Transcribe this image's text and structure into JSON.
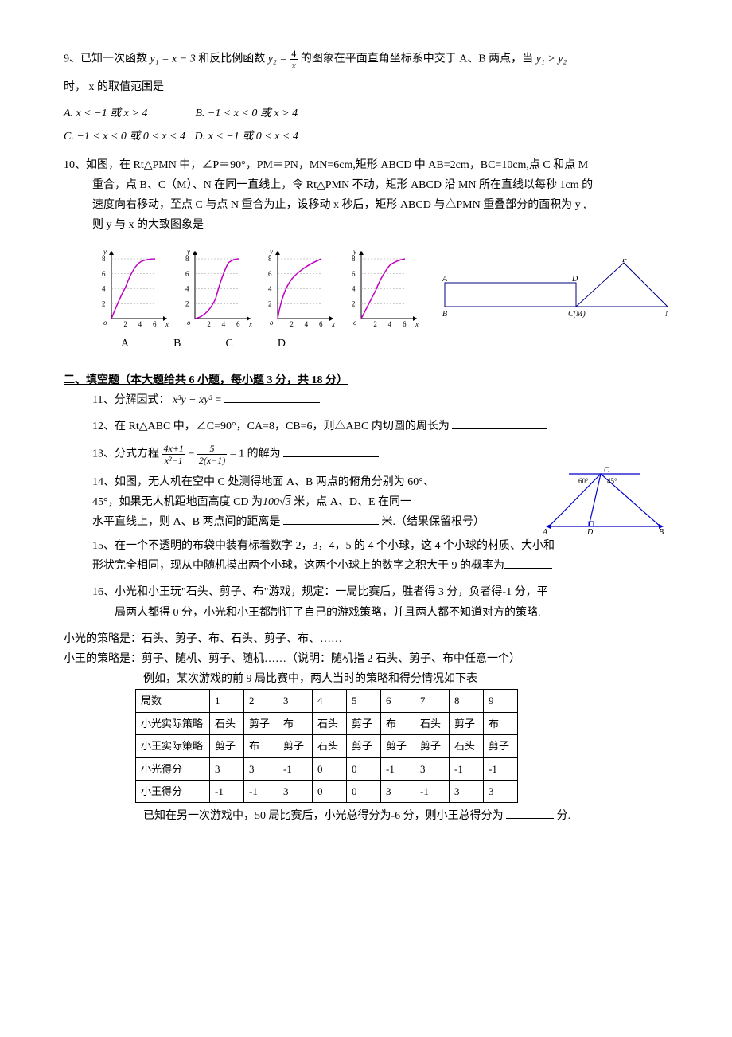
{
  "q9": {
    "stem_a": "9、已知一次函数 ",
    "y1_expr": "y₁ = x − 3",
    "mid": " 和反比例函数 ",
    "y2_left": "y₂ = ",
    "y2_frac_num": "4",
    "y2_frac_den": "x",
    "stem_b": " 的图象在平面直角坐标系中交于 A、B 两点，当 ",
    "cond": "y₁ > y₂",
    "line2": "时， x 的取值范围是",
    "optA": "A.  x < −1 或 x > 4",
    "optB": "B.  −1 < x < 0 或 x > 4",
    "optC": "C.  −1 < x < 0 或 0 < x < 4",
    "optD": "D.  x < −1 或 0 < x < 4"
  },
  "q10": {
    "stem1": "10、如图，在 Rt△PMN 中，∠P＝90°，PM＝PN，MN=6cm,矩形 ABCD 中 AB=2cm，BC=10cm,点 C 和点 M",
    "stem2": "重合，点 B、C（M）、N 在同一直线上，令 Rt△PMN 不动，矩形 ABCD 沿 MN 所在直线以每秒 1cm 的",
    "stem3": "速度向右移动，至点 C 与点 N 重合为止，设移动 x 秒后，矩形 ABCD 与△PMN 重叠部分的面积为 y ,",
    "stem4": "则 y 与 x 的大致图象是",
    "chart_labels": [
      "A",
      "B",
      "C",
      "D"
    ],
    "chart": {
      "y_ticks": [
        2,
        4,
        6,
        8
      ],
      "x_ticks": [
        2,
        4,
        6
      ],
      "axis_color": "#000000",
      "curve_color": "#c000c0",
      "tick_fontsize": 9
    },
    "geom": {
      "labels": {
        "A": "A",
        "B": "B",
        "D": "D",
        "CM": "C(M)",
        "P": "P",
        "N": "N"
      },
      "line_color": "#000080"
    }
  },
  "section2": "二、填空题（本大题给共 6 小题，每小题 3 分，共 18 分）",
  "q11": {
    "pre": "11、分解因式： ",
    "expr": "x³y − xy³",
    "post": "="
  },
  "q12": {
    "text": "12、在 Rt△ABC 中，∠C=90°，CA=8，CB=6，则△ABC 内切圆的周长为"
  },
  "q13": {
    "pre": "13、分式方程 ",
    "f1_num": "4x+1",
    "f1_den": "x²−1",
    "minus": " − ",
    "f2_num": "5",
    "f2_den": "2(x−1)",
    "post": " = 1 的解为"
  },
  "q14": {
    "l1": "14、如图，无人机在空中 C 处测得地面 A、B 两点的俯角分别为 60°、",
    "l2a": "45°，如果无人机距地面高度 CD 为",
    "l2_num": "100",
    "l2_sqrt": "3",
    "l2b": " 米，点 A、D、E 在同一",
    "l3": "水平直线上，则 A、B 两点间的距离是",
    "l3b": "米.（结果保留根号）",
    "tri": {
      "C": "C",
      "A": "A",
      "D": "D",
      "B": "B",
      "ang60": "60°",
      "ang45": "45°",
      "line_color": "#0000cc"
    }
  },
  "q15": {
    "l1": "15、在一个不透明的布袋中装有标着数字 2，3，4，5 的 4 个小球，这 4 个小球的材质、大小和",
    "l2": "形状完全相同，现从中随机摸出两个小球，这两个小球上的数字之积大于 9 的概率为"
  },
  "q16": {
    "l1": "16、小光和小王玩\"石头、剪子、布\"游戏，规定：一局比赛后，胜者得 3 分，负者得-1 分，平",
    "l2": "局两人都得 0 分，小光和小王都制订了自己的游戏策略，并且两人都不知道对方的策略.",
    "l3": "小光的策略是：石头、剪子、布、石头、剪子、布、……",
    "l4": "小王的策略是：剪子、随机、剪子、随机……（说明：随机指 2 石头、剪子、布中任意一个）",
    "l5": "例如，某次游戏的前 9 局比赛中，两人当时的策略和得分情况如下表",
    "table": {
      "rows": [
        [
          "局数",
          "1",
          "2",
          "3",
          "4",
          "5",
          "6",
          "7",
          "8",
          "9"
        ],
        [
          "小光实际策略",
          "石头",
          "剪子",
          "布",
          "石头",
          "剪子",
          "布",
          "石头",
          "剪子",
          "布"
        ],
        [
          "小王实际策略",
          "剪子",
          "布",
          "剪子",
          "石头",
          "剪子",
          "剪子",
          "剪子",
          "石头",
          "剪子"
        ],
        [
          "小光得分",
          "3",
          "3",
          "-1",
          "0",
          "0",
          "-1",
          "3",
          "-1",
          "-1"
        ],
        [
          "小王得分",
          "-1",
          "-1",
          "3",
          "0",
          "0",
          "3",
          "-1",
          "3",
          "3"
        ]
      ]
    },
    "l6a": "已知在另一次游戏中，50 局比赛后，小光总得分为-6 分，则小王总得分为",
    "l6b": "分."
  }
}
